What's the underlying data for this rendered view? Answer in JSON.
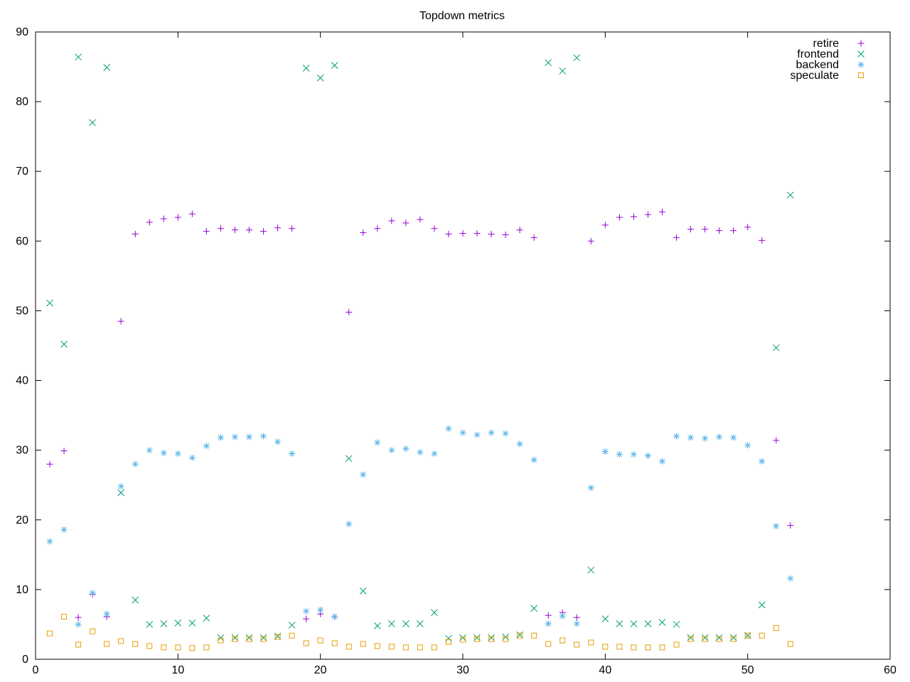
{
  "chart_data": {
    "type": "scatter",
    "title": "Topdown metrics",
    "xlabel": "",
    "ylabel": "",
    "xlim": [
      0,
      60
    ],
    "ylim": [
      0,
      90
    ],
    "xticks": [
      0,
      10,
      20,
      30,
      40,
      50,
      60
    ],
    "yticks": [
      0,
      10,
      20,
      30,
      40,
      50,
      60,
      70,
      80,
      90
    ],
    "grid": false,
    "legend_position": "top-right",
    "x": [
      1,
      2,
      3,
      4,
      5,
      6,
      7,
      8,
      9,
      10,
      11,
      12,
      13,
      14,
      15,
      16,
      17,
      18,
      19,
      20,
      21,
      22,
      23,
      24,
      25,
      26,
      27,
      28,
      29,
      30,
      31,
      32,
      33,
      34,
      35,
      36,
      37,
      38,
      39,
      40,
      41,
      42,
      43,
      44,
      45,
      46,
      47,
      48,
      49,
      50,
      51,
      52,
      53
    ],
    "series": [
      {
        "name": "retire",
        "marker": "plus",
        "color": "#9400d3",
        "values": [
          28.0,
          29.9,
          6.0,
          9.3,
          6.1,
          48.5,
          61.0,
          62.7,
          63.2,
          63.4,
          63.9,
          61.4,
          61.8,
          61.6,
          61.6,
          61.4,
          61.9,
          61.8,
          5.8,
          6.5,
          6.1,
          49.8,
          61.2,
          61.8,
          62.9,
          62.6,
          63.1,
          61.8,
          61.0,
          61.1,
          61.1,
          61.0,
          60.9,
          61.6,
          60.5,
          6.3,
          6.7,
          6.0,
          60.0,
          62.3,
          63.4,
          63.5,
          63.8,
          64.2,
          60.5,
          61.7,
          61.7,
          61.5,
          61.5,
          62.0,
          60.1,
          31.4,
          19.2
        ]
      },
      {
        "name": "frontend",
        "marker": "cross",
        "color": "#009e73",
        "values": [
          51.1,
          45.2,
          86.4,
          77.0,
          84.9,
          23.9,
          8.5,
          5.0,
          5.1,
          5.2,
          5.2,
          5.9,
          3.1,
          3.1,
          3.1,
          3.1,
          3.3,
          4.9,
          84.8,
          83.4,
          85.2,
          28.8,
          9.8,
          4.8,
          5.1,
          5.1,
          5.1,
          6.7,
          3.0,
          3.1,
          3.1,
          3.1,
          3.2,
          3.5,
          7.3,
          85.6,
          84.4,
          86.3,
          12.8,
          5.8,
          5.1,
          5.1,
          5.1,
          5.3,
          5.0,
          3.1,
          3.1,
          3.1,
          3.1,
          3.4,
          7.8,
          44.7,
          66.6
        ]
      },
      {
        "name": "backend",
        "marker": "star",
        "color": "#56b4e9",
        "values": [
          16.9,
          18.6,
          5.0,
          9.5,
          6.5,
          24.8,
          28.0,
          30.0,
          29.6,
          29.5,
          28.9,
          30.6,
          31.8,
          31.9,
          31.9,
          32.0,
          31.2,
          29.5,
          6.9,
          7.1,
          6.1,
          19.4,
          26.5,
          31.1,
          30.0,
          30.2,
          29.7,
          29.5,
          33.1,
          32.5,
          32.2,
          32.5,
          32.4,
          30.9,
          28.6,
          5.1,
          6.2,
          5.1,
          24.6,
          29.8,
          29.4,
          29.4,
          29.2,
          28.4,
          32.0,
          31.8,
          31.7,
          31.9,
          31.8,
          30.7,
          28.4,
          19.1,
          11.6
        ]
      },
      {
        "name": "speculate",
        "marker": "square",
        "color": "#e69f00",
        "values": [
          3.7,
          6.1,
          2.1,
          4.0,
          2.2,
          2.6,
          2.2,
          1.9,
          1.7,
          1.7,
          1.6,
          1.7,
          2.7,
          2.9,
          2.9,
          2.9,
          3.2,
          3.4,
          2.3,
          2.7,
          2.3,
          1.8,
          2.2,
          1.9,
          1.8,
          1.7,
          1.7,
          1.7,
          2.5,
          2.8,
          2.9,
          2.9,
          2.9,
          3.4,
          3.4,
          2.2,
          2.7,
          2.1,
          2.4,
          1.8,
          1.8,
          1.7,
          1.7,
          1.7,
          2.1,
          2.9,
          2.9,
          2.9,
          2.9,
          3.4,
          3.4,
          4.5,
          2.2
        ]
      }
    ]
  }
}
